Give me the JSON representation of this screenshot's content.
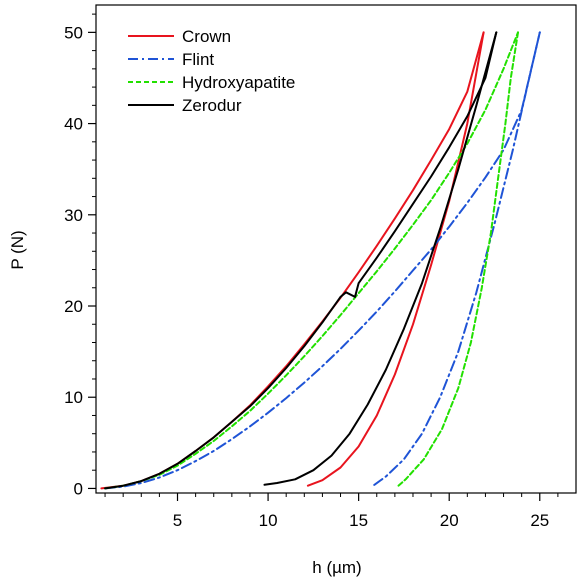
{
  "chart_data": {
    "type": "line",
    "title": "",
    "xlabel": "h (µm)",
    "ylabel": "P (N)",
    "xlim": [
      0.5,
      27
    ],
    "ylim": [
      -0.5,
      53
    ],
    "xticks": [
      5,
      10,
      15,
      20,
      25
    ],
    "yticks": [
      0,
      10,
      20,
      30,
      40,
      50
    ],
    "grid": false,
    "legend_position": "top-left",
    "series": [
      {
        "name": "Crown",
        "color": "#e8141e",
        "dash": "solid",
        "loading": [
          [
            0.8,
            0
          ],
          [
            2,
            0.3
          ],
          [
            3,
            0.8
          ],
          [
            4,
            1.6
          ],
          [
            5,
            2.7
          ],
          [
            6,
            4.1
          ],
          [
            7,
            5.6
          ],
          [
            8,
            7.3
          ],
          [
            9,
            9.1
          ],
          [
            10,
            11.2
          ],
          [
            11,
            13.4
          ],
          [
            12,
            15.8
          ],
          [
            13,
            18.3
          ],
          [
            14,
            20.9
          ],
          [
            15,
            23.7
          ],
          [
            16,
            26.6
          ],
          [
            17,
            29.6
          ],
          [
            18,
            32.7
          ],
          [
            19,
            36
          ],
          [
            20,
            39.4
          ],
          [
            21,
            43.5
          ],
          [
            21.9,
            50
          ]
        ],
        "unloading": [
          [
            21.9,
            50
          ],
          [
            21,
            40
          ],
          [
            20,
            31.5
          ],
          [
            19,
            24.5
          ],
          [
            18,
            18
          ],
          [
            17,
            12.5
          ],
          [
            16,
            8
          ],
          [
            15,
            4.6
          ],
          [
            14,
            2.3
          ],
          [
            13,
            0.9
          ],
          [
            12.2,
            0.3
          ]
        ]
      },
      {
        "name": "Flint",
        "color": "#1f54d6",
        "dash": "dashdot",
        "loading": [
          [
            1,
            0
          ],
          [
            2,
            0.2
          ],
          [
            3,
            0.6
          ],
          [
            4,
            1.2
          ],
          [
            5,
            2
          ],
          [
            6,
            3
          ],
          [
            7,
            4.1
          ],
          [
            8,
            5.4
          ],
          [
            9,
            6.8
          ],
          [
            10,
            8.3
          ],
          [
            11,
            9.9
          ],
          [
            12,
            11.6
          ],
          [
            13,
            13.4
          ],
          [
            14,
            15.3
          ],
          [
            15,
            17.3
          ],
          [
            16,
            19.4
          ],
          [
            17,
            21.6
          ],
          [
            18,
            23.9
          ],
          [
            19,
            26.2
          ],
          [
            20,
            28.7
          ],
          [
            21,
            31.3
          ],
          [
            22,
            34.1
          ],
          [
            23,
            37.1
          ],
          [
            24,
            41.5
          ],
          [
            25,
            50
          ]
        ],
        "unloading": [
          [
            25,
            50
          ],
          [
            24.3,
            44
          ],
          [
            23.5,
            37
          ],
          [
            22.5,
            29
          ],
          [
            21.5,
            21.5
          ],
          [
            20.5,
            15
          ],
          [
            19.5,
            10
          ],
          [
            18.5,
            6
          ],
          [
            17.5,
            3.2
          ],
          [
            16.5,
            1.3
          ],
          [
            15.8,
            0.3
          ]
        ]
      },
      {
        "name": "Hydroxyapatite",
        "color": "#22e000",
        "dash": "dashed",
        "loading": [
          [
            1,
            0
          ],
          [
            2,
            0.3
          ],
          [
            3,
            0.8
          ],
          [
            4,
            1.5
          ],
          [
            5,
            2.5
          ],
          [
            6,
            3.8
          ],
          [
            7,
            5.2
          ],
          [
            8,
            6.8
          ],
          [
            9,
            8.5
          ],
          [
            10,
            10.4
          ],
          [
            11,
            12.4
          ],
          [
            12,
            14.5
          ],
          [
            13,
            16.7
          ],
          [
            14,
            19
          ],
          [
            15,
            21.4
          ],
          [
            16,
            23.8
          ],
          [
            17,
            26.3
          ],
          [
            18,
            28.9
          ],
          [
            19,
            31.6
          ],
          [
            20,
            34.6
          ],
          [
            21,
            37.8
          ],
          [
            22,
            41.5
          ],
          [
            23,
            46
          ],
          [
            23.8,
            50
          ]
        ],
        "unloading": [
          [
            23.8,
            50
          ],
          [
            23.4,
            45
          ],
          [
            23.1,
            40
          ],
          [
            22.7,
            34
          ],
          [
            22.3,
            28
          ],
          [
            21.8,
            22
          ],
          [
            21.2,
            16
          ],
          [
            20.5,
            11
          ],
          [
            19.6,
            6.5
          ],
          [
            18.6,
            3.2
          ],
          [
            17.6,
            1
          ],
          [
            17.2,
            0.3
          ]
        ]
      },
      {
        "name": "Zerodur",
        "color": "#000000",
        "dash": "solid",
        "loading": [
          [
            1,
            0
          ],
          [
            2,
            0.3
          ],
          [
            3,
            0.8
          ],
          [
            4,
            1.6
          ],
          [
            5,
            2.7
          ],
          [
            6,
            4.1
          ],
          [
            7,
            5.6
          ],
          [
            8,
            7.3
          ],
          [
            9,
            9
          ],
          [
            10,
            11
          ],
          [
            11,
            13.2
          ],
          [
            12,
            15.6
          ],
          [
            13,
            18.2
          ],
          [
            14,
            21
          ],
          [
            14.3,
            21.5
          ],
          [
            14.8,
            21
          ],
          [
            15,
            22.5
          ],
          [
            16,
            25.3
          ],
          [
            17,
            28.2
          ],
          [
            18,
            31.2
          ],
          [
            19,
            34.2
          ],
          [
            20,
            37.4
          ],
          [
            21,
            40.8
          ],
          [
            22,
            45
          ],
          [
            22.6,
            50
          ]
        ],
        "unloading": [
          [
            22.6,
            50
          ],
          [
            21.5,
            42
          ],
          [
            20.5,
            35
          ],
          [
            19.5,
            28.5
          ],
          [
            18.5,
            22.5
          ],
          [
            17.5,
            17.5
          ],
          [
            16.5,
            13
          ],
          [
            15.5,
            9.2
          ],
          [
            14.5,
            6
          ],
          [
            13.5,
            3.6
          ],
          [
            12.5,
            2
          ],
          [
            11.5,
            1
          ],
          [
            10.5,
            0.6
          ],
          [
            9.8,
            0.4
          ]
        ]
      }
    ]
  }
}
